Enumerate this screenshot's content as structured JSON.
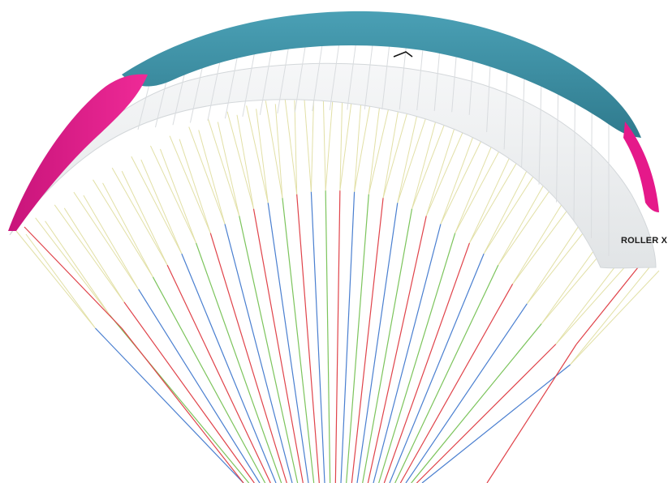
{
  "image": {
    "subject": "paraglider-wing-render",
    "model_label": "ROLLER X"
  },
  "colors": {
    "background": "#ffffff",
    "leading_edge": "#3a8ea3",
    "leading_edge_dark": "#2f7a8d",
    "wingtip": "#e5198a",
    "wingtip_shade": "#c8147a",
    "canopy_underside": "#f0f1f2",
    "canopy_shadow": "#d9dcdf",
    "line_upper": "#e2e0a6",
    "line_red": "#e0434a",
    "line_blue": "#4a7fd0",
    "line_green": "#7cc45c"
  }
}
